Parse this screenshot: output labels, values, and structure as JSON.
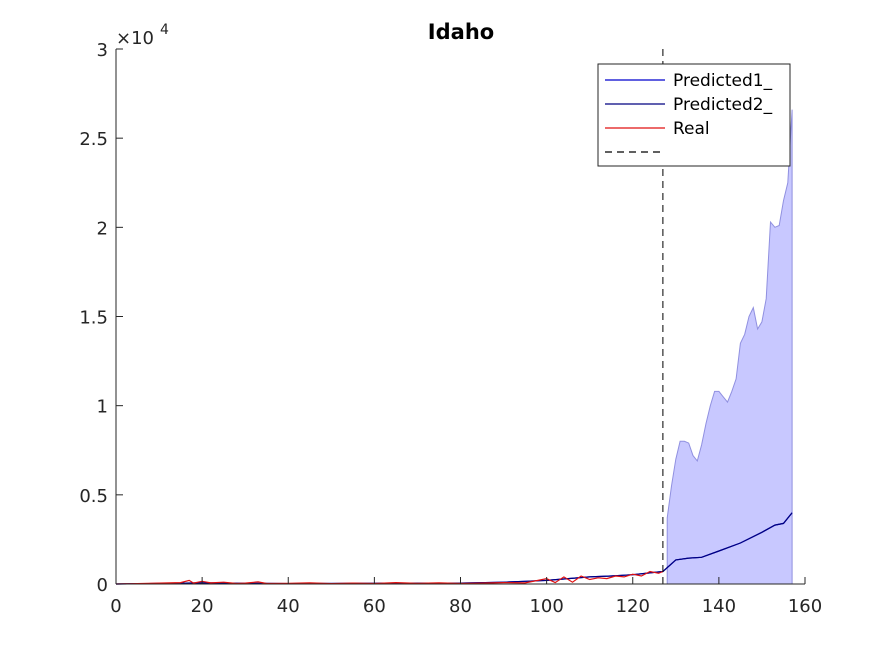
{
  "chart_data": {
    "type": "line",
    "title": "Idaho",
    "xlabel": "",
    "ylabel": "",
    "xlim": [
      0,
      160
    ],
    "ylim": [
      0,
      30000
    ],
    "y_exponent_label": "×10",
    "y_exponent_power": "4",
    "xticks": [
      "0",
      "20",
      "40",
      "60",
      "80",
      "100",
      "120",
      "140",
      "160"
    ],
    "xtick_values": [
      0,
      20,
      40,
      60,
      80,
      100,
      120,
      140,
      160
    ],
    "yticks": [
      "0",
      "0.5",
      "1",
      "1.5",
      "2",
      "2.5",
      "3"
    ],
    "ytick_values": [
      0,
      5000,
      10000,
      15000,
      20000,
      25000,
      30000
    ],
    "grid": false,
    "legend_position": "top-right",
    "vline_x": 127,
    "series": [
      {
        "name": "Predicted1_",
        "color": "#0000cd",
        "x": [
          0,
          10,
          20,
          30,
          40,
          50,
          60,
          70,
          80,
          90,
          95,
          100,
          105,
          110,
          115,
          120,
          125,
          127,
          130,
          133,
          136,
          140,
          145,
          150,
          153,
          155,
          157
        ],
        "values": [
          0,
          30,
          60,
          40,
          20,
          30,
          40,
          50,
          50,
          100,
          150,
          200,
          300,
          400,
          450,
          520,
          650,
          700,
          1350,
          1450,
          1500,
          1850,
          2300,
          2900,
          3300,
          3400,
          4000
        ]
      },
      {
        "name": "Predicted2_",
        "color": "#000080",
        "x": [
          0,
          10,
          20,
          30,
          40,
          50,
          60,
          70,
          80,
          90,
          95,
          100,
          105,
          110,
          115,
          120,
          125,
          127,
          130,
          133,
          136,
          140,
          145,
          150,
          153,
          155,
          157
        ],
        "values": [
          0,
          30,
          60,
          40,
          20,
          30,
          40,
          50,
          50,
          100,
          150,
          200,
          300,
          400,
          450,
          520,
          650,
          700,
          1350,
          1450,
          1500,
          1850,
          2300,
          2900,
          3300,
          3400,
          4000
        ]
      },
      {
        "name": "Real",
        "color": "#e01010",
        "x": [
          0,
          5,
          10,
          15,
          17,
          18,
          20,
          22,
          25,
          28,
          30,
          33,
          35,
          40,
          45,
          50,
          55,
          60,
          65,
          70,
          75,
          80,
          85,
          90,
          95,
          98,
          100,
          102,
          104,
          106,
          108,
          110,
          112,
          114,
          116,
          118,
          120,
          122,
          124,
          126,
          127
        ],
        "values": [
          0,
          20,
          50,
          80,
          200,
          50,
          150,
          60,
          100,
          30,
          50,
          120,
          30,
          40,
          60,
          20,
          50,
          30,
          80,
          40,
          60,
          30,
          50,
          80,
          60,
          200,
          300,
          80,
          400,
          100,
          450,
          250,
          350,
          300,
          450,
          400,
          550,
          450,
          700,
          600,
          700
        ]
      },
      {
        "name": "",
        "color": "#000000",
        "style": "dashed"
      }
    ],
    "band": {
      "color": "#c8c8ff",
      "edge": "#9090e0",
      "x": [
        128,
        129,
        130,
        131,
        132,
        133,
        134,
        135,
        136,
        137,
        138,
        139,
        140,
        141,
        142,
        143,
        144,
        145,
        146,
        147,
        148,
        149,
        150,
        151,
        152,
        153,
        154,
        155,
        156,
        157
      ],
      "upper": [
        3700,
        5500,
        7000,
        8000,
        8000,
        7900,
        7200,
        6900,
        7800,
        9000,
        10000,
        10800,
        10800,
        10500,
        10200,
        10800,
        11500,
        13500,
        14000,
        15000,
        15500,
        14300,
        14700,
        16000,
        20300,
        20000,
        20100,
        21500,
        22500,
        26600
      ],
      "lower": [
        0,
        0,
        0,
        0,
        0,
        0,
        0,
        0,
        0,
        0,
        0,
        0,
        0,
        0,
        0,
        0,
        0,
        0,
        0,
        0,
        0,
        0,
        0,
        0,
        0,
        0,
        0,
        0,
        0,
        0
      ]
    }
  }
}
